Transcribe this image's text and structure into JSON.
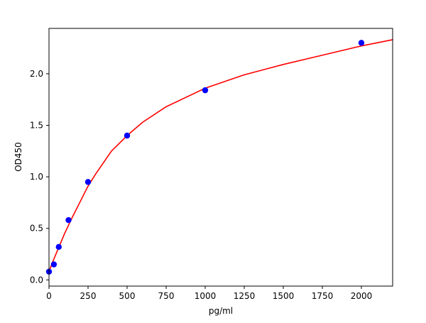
{
  "chart_data": {
    "type": "scatter",
    "title": "",
    "xlabel": "pg/ml",
    "ylabel": "OD450",
    "xlim": [
      0,
      2200
    ],
    "ylim": [
      -0.06,
      2.44
    ],
    "x_ticks": [
      0,
      250,
      500,
      750,
      1000,
      1250,
      1500,
      1750,
      2000
    ],
    "y_ticks": [
      0.0,
      0.5,
      1.0,
      1.5,
      2.0
    ],
    "x_tick_labels": [
      "0",
      "250",
      "500",
      "750",
      "1000",
      "1250",
      "1500",
      "1750",
      "2000"
    ],
    "y_tick_labels": [
      "0.0",
      "0.5",
      "1.0",
      "1.5",
      "2.0"
    ],
    "grid": false,
    "series": [
      {
        "kind": "points",
        "color": "#0000ff",
        "x": [
          0,
          31.25,
          62.5,
          125,
          250,
          500,
          1000,
          2000
        ],
        "y": [
          0.08,
          0.15,
          0.32,
          0.58,
          0.95,
          1.4,
          1.84,
          2.3
        ]
      },
      {
        "kind": "fitted-curve",
        "color": "#ff0000",
        "x": [
          0,
          25,
          50,
          100,
          150,
          200,
          250,
          300,
          400,
          500,
          600,
          750,
          1000,
          1250,
          1500,
          1750,
          2000,
          2200
        ],
        "y": [
          0.08,
          0.18,
          0.27,
          0.45,
          0.61,
          0.76,
          0.91,
          1.03,
          1.25,
          1.4,
          1.53,
          1.68,
          1.86,
          1.99,
          2.09,
          2.18,
          2.27,
          2.33
        ]
      }
    ]
  }
}
